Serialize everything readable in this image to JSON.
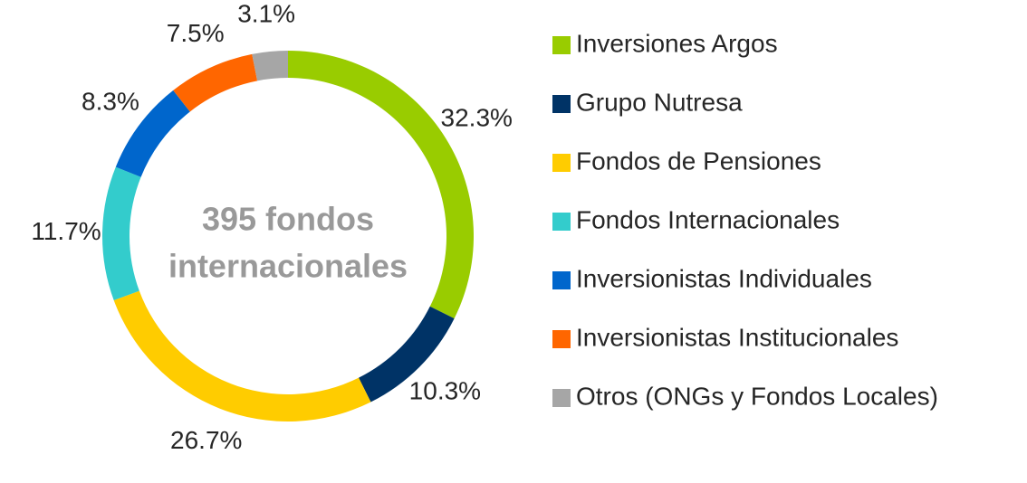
{
  "chart_data": {
    "type": "donut",
    "center_text": [
      "395 fondos",
      "internacionales"
    ],
    "categories": [
      "Inversiones Argos",
      "Grupo Nutresa",
      "Fondos de Pensiones",
      "Fondos Internacionales",
      "Inversionistas Individuales",
      "Inversionistas Institucionales",
      "Otros (ONGs y Fondos Locales)"
    ],
    "values": [
      32.3,
      10.3,
      26.7,
      11.7,
      8.3,
      7.5,
      3.1
    ],
    "value_labels": [
      "32.3%",
      "10.3%",
      "26.7%",
      "11.7%",
      "8.3%",
      "7.5%",
      "3.1%"
    ],
    "colors": [
      "#99cc00",
      "#003366",
      "#ffcc00",
      "#33cccc",
      "#0066cc",
      "#ff6600",
      "#a6a6a6"
    ],
    "legend": "right"
  }
}
